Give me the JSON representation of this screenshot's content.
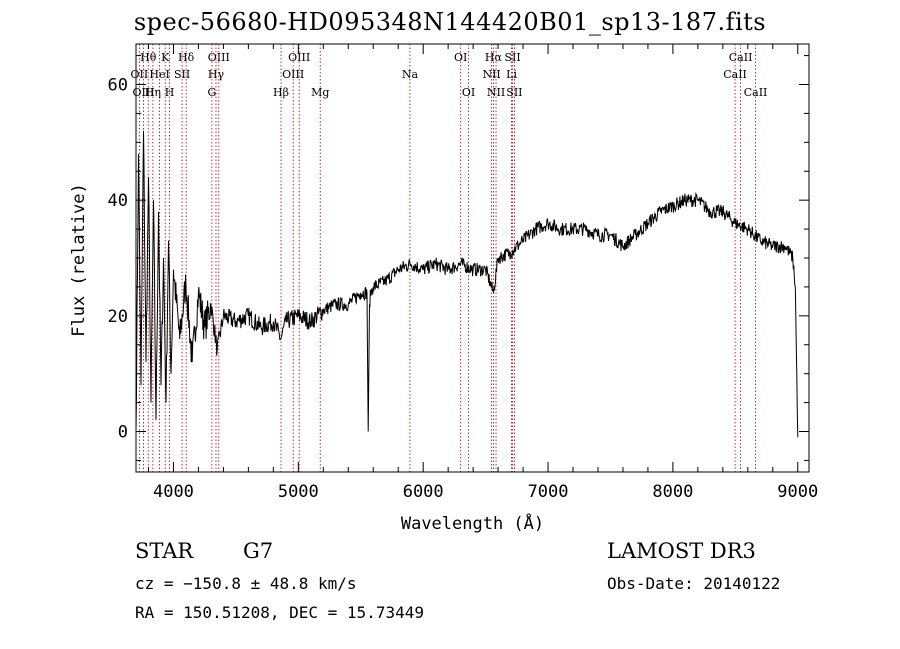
{
  "chart_data": {
    "type": "line",
    "title": "spec-56680-HD095348N144420B01_sp13-187.fits",
    "xlabel": "Wavelength (Å)",
    "ylabel": "Flux (relative)",
    "xlim": [
      3700,
      9090
    ],
    "ylim": [
      -7,
      67
    ],
    "x_ticks": [
      4000,
      5000,
      6000,
      7000,
      8000,
      9000
    ],
    "x_tick_labels": [
      "4000",
      "5000",
      "6000",
      "7000",
      "8000",
      "9000"
    ],
    "y_ticks": [
      0,
      20,
      40,
      60
    ],
    "y_tick_labels": [
      "0",
      "20",
      "40",
      "60"
    ],
    "series": [
      {
        "name": "flux",
        "color": "#000000",
        "x": [
          3700,
          3720,
          3740,
          3760,
          3780,
          3800,
          3820,
          3840,
          3860,
          3880,
          3900,
          3920,
          3940,
          3960,
          3980,
          4000,
          4050,
          4100,
          4150,
          4200,
          4250,
          4300,
          4350,
          4400,
          4500,
          4600,
          4700,
          4800,
          4860,
          4900,
          5000,
          5100,
          5200,
          5300,
          5400,
          5500,
          5550,
          5560,
          5570,
          5580,
          5600,
          5700,
          5800,
          5900,
          6000,
          6100,
          6200,
          6300,
          6400,
          6500,
          6563,
          6600,
          6700,
          6800,
          6900,
          7000,
          7100,
          7200,
          7300,
          7400,
          7500,
          7600,
          7700,
          7800,
          7900,
          8000,
          8100,
          8200,
          8300,
          8400,
          8500,
          8600,
          8700,
          8800,
          8900,
          8960,
          8980,
          9000
        ],
        "y": [
          0,
          48,
          8,
          52,
          12,
          44,
          5,
          40,
          2,
          38,
          8,
          30,
          5,
          33,
          10,
          28,
          16,
          26,
          12,
          24,
          18,
          22,
          14,
          20,
          19,
          20,
          18,
          19,
          16,
          19,
          20,
          19,
          21,
          22,
          22,
          24,
          24,
          0,
          22,
          24,
          25,
          26,
          28,
          29,
          28,
          29,
          28,
          29,
          28,
          28,
          24,
          30,
          31,
          33,
          35,
          36,
          35,
          35,
          35,
          34,
          34,
          32,
          34,
          36,
          38,
          39,
          40,
          40,
          38,
          38,
          36,
          35,
          33,
          32,
          32,
          30,
          25,
          -1
        ]
      }
    ],
    "line_markers": [
      {
        "label": "Hθ",
        "wavelength": 3797.9,
        "row": 1
      },
      {
        "label": "OII",
        "wavelength": 3727.1,
        "row": 2
      },
      {
        "label": "OIII",
        "wavelength": 3760,
        "row": 3
      },
      {
        "label": "Hη",
        "wavelength": 3835.4,
        "row": 3
      },
      {
        "label": "K",
        "wavelength": 3933.7,
        "row": 1
      },
      {
        "label": "HeI",
        "wavelength": 3889,
        "row": 2
      },
      {
        "label": "H",
        "wavelength": 3968.5,
        "row": 3
      },
      {
        "label": "SII",
        "wavelength": 4069,
        "row": 2
      },
      {
        "label": "Hδ",
        "wavelength": 4101.7,
        "row": 1
      },
      {
        "label": "OIII",
        "wavelength": 4363.2,
        "row": 1
      },
      {
        "label": "Hγ",
        "wavelength": 4340.5,
        "row": 2
      },
      {
        "label": "G",
        "wavelength": 4307.9,
        "row": 3
      },
      {
        "label": "Hβ",
        "wavelength": 4861.3,
        "row": 3
      },
      {
        "label": "OIII",
        "wavelength": 5006.8,
        "row": 1
      },
      {
        "label": "OIII",
        "wavelength": 4958.9,
        "row": 2
      },
      {
        "label": "Mg",
        "wavelength": 5175.4,
        "row": 3
      },
      {
        "label": "Na",
        "wavelength": 5894,
        "row": 2
      },
      {
        "label": "OI",
        "wavelength": 6300.3,
        "row": 1
      },
      {
        "label": "OI",
        "wavelength": 6363.8,
        "row": 3
      },
      {
        "label": "Hα",
        "wavelength": 6562.8,
        "row": 1
      },
      {
        "label": "NII",
        "wavelength": 6548.1,
        "row": 2
      },
      {
        "label": "NII",
        "wavelength": 6583.5,
        "row": 3
      },
      {
        "label": "SII",
        "wavelength": 6716.4,
        "row": 1
      },
      {
        "label": "Li",
        "wavelength": 6707.8,
        "row": 2
      },
      {
        "label": "SII",
        "wavelength": 6730.8,
        "row": 3
      },
      {
        "label": "CaII",
        "wavelength": 8542.1,
        "row": 1
      },
      {
        "label": "CaII",
        "wavelength": 8498,
        "row": 2
      },
      {
        "label": "CaII",
        "wavelength": 8662.1,
        "row": 3
      }
    ],
    "marker_color": "#aa0000",
    "grid": false,
    "legend": "none"
  },
  "info": {
    "object_class": "STAR",
    "subclass": "G7",
    "survey": "LAMOST DR3",
    "cz": "cz = −150.8 ± 48.8 km/s",
    "obs_date": "Obs-Date: 20140122",
    "coords": "RA = 150.51208, DEC =  15.73449"
  }
}
